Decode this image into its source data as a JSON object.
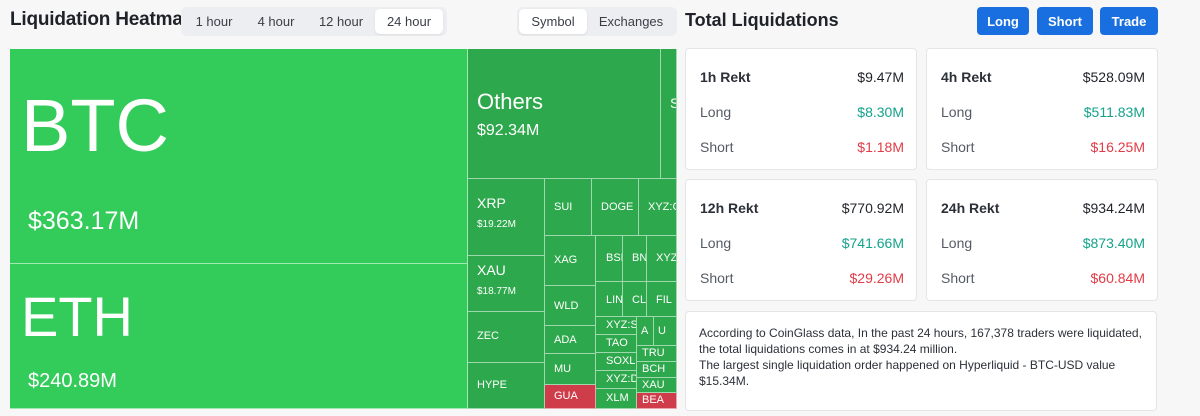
{
  "header": {
    "title": "Liquidation Heatmap",
    "time_tabs": [
      {
        "label": "1 hour",
        "active": false
      },
      {
        "label": "4 hour",
        "active": false
      },
      {
        "label": "12 hour",
        "active": false
      },
      {
        "label": "24 hour",
        "active": true
      }
    ],
    "view_tabs": [
      {
        "label": "Symbol",
        "active": true
      },
      {
        "label": "Exchanges",
        "active": false
      }
    ]
  },
  "total": {
    "title": "Total Liquidations",
    "buttons": {
      "long": "Long",
      "short": "Short",
      "trade": "Trade"
    },
    "cards": [
      {
        "period": "1h Rekt",
        "total": "$9.47M",
        "long_label": "Long",
        "long": "$8.30M",
        "short_label": "Short",
        "short": "$1.18M"
      },
      {
        "period": "4h Rekt",
        "total": "$528.09M",
        "long_label": "Long",
        "long": "$511.83M",
        "short_label": "Short",
        "short": "$16.25M"
      },
      {
        "period": "12h Rekt",
        "total": "$770.92M",
        "long_label": "Long",
        "long": "$741.66M",
        "short_label": "Short",
        "short": "$29.26M"
      },
      {
        "period": "24h Rekt",
        "total": "$934.24M",
        "long_label": "Long",
        "long": "$873.40M",
        "short_label": "Short",
        "short": "$60.84M"
      }
    ],
    "note_1": "According to CoinGlass data, In the past 24 hours, 167,378 traders were liquidated, the total liquidations comes in at $934.24 million.",
    "note_2": "The largest single liquidation order happened on Hyperliquid - BTC-USD value $15.34M."
  },
  "heatmap": {
    "colors": {
      "bright": "#33cc5a",
      "medium": "#2ea84c",
      "dark": "#248c3c",
      "red": "#cf3d4b"
    },
    "big": [
      {
        "symbol": "BTC",
        "value": "$363.17M"
      },
      {
        "symbol": "ETH",
        "value": "$240.89M"
      },
      {
        "symbol": "Others",
        "value": "$92.34M"
      }
    ],
    "mid": [
      {
        "symbol": "XRP",
        "value": "$19.22M"
      },
      {
        "symbol": "XAU",
        "value": "$18.77M"
      }
    ],
    "small": [
      "ZEC",
      "HYPE",
      "SUI",
      "DOGE",
      "XYZ:CL",
      "XAG",
      "WLD",
      "ADA",
      "MU",
      "GUA",
      "BSB",
      "BNB",
      "XYZ",
      "LIN",
      "CL",
      "FIL",
      "XYZ:S",
      "A",
      "U",
      "TAO",
      "SOXL",
      "TRU",
      "BCH",
      "XYZ:D",
      "XAU",
      "XLM",
      "BEA",
      "S"
    ]
  }
}
